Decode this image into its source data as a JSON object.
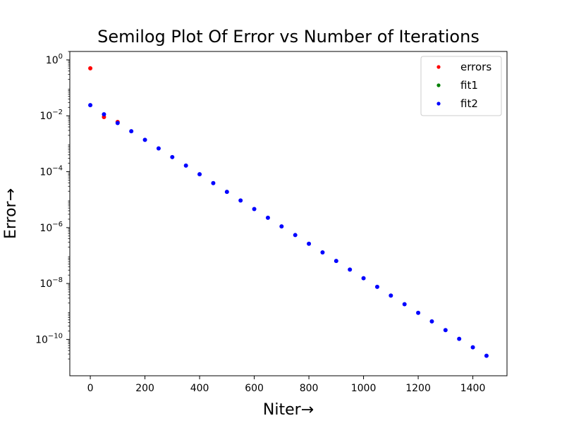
{
  "chart_data": {
    "type": "scatter",
    "title": "Semilog Plot Of Error vs Number of Iterations",
    "xlabel": "Niter→",
    "ylabel": "Error→",
    "xlim": [
      -75,
      1525
    ],
    "ylim": [
      5e-12,
      2
    ],
    "yscale": "log",
    "grid": false,
    "legend_position": "top-right",
    "x_ticks": [
      0,
      200,
      400,
      600,
      800,
      1000,
      1200,
      1400
    ],
    "x_tick_labels": [
      "0",
      "200",
      "400",
      "600",
      "800",
      "1000",
      "1200",
      "1400"
    ],
    "y_ticks": [
      1,
      0.01,
      0.0001,
      1e-06,
      1e-08,
      1e-10
    ],
    "y_tick_labels": [
      {
        "base": "10",
        "exp": "0"
      },
      {
        "base": "10",
        "exp": "−2"
      },
      {
        "base": "10",
        "exp": "−4"
      },
      {
        "base": "10",
        "exp": "−6"
      },
      {
        "base": "10",
        "exp": "−8"
      },
      {
        "base": "10",
        "exp": "−10"
      }
    ],
    "series": [
      {
        "name": "errors",
        "color": "#ff0000",
        "x": [
          0,
          50,
          100
        ],
        "y": [
          0.5,
          0.009,
          0.006
        ]
      },
      {
        "name": "fit1",
        "color": "#008000",
        "x": [],
        "y": []
      },
      {
        "name": "fit2",
        "color": "#0000ff",
        "x": [
          0,
          50,
          100,
          150,
          200,
          250,
          300,
          350,
          400,
          450,
          500,
          550,
          600,
          650,
          700,
          750,
          800,
          850,
          900,
          950,
          1000,
          1050,
          1100,
          1150,
          1200,
          1250,
          1300,
          1350,
          1400,
          1450
        ],
        "y": [
          0.024,
          0.0113,
          0.0055,
          0.0028,
          0.00138,
          0.00068,
          0.000333,
          0.000165,
          8.1e-05,
          3.9e-05,
          1.9e-05,
          9.3e-06,
          4.6e-06,
          2.25e-06,
          1.1e-06,
          5.4e-07,
          2.65e-07,
          1.3e-07,
          6.4e-08,
          3.15e-08,
          1.55e-08,
          7.6e-09,
          3.7e-09,
          1.82e-09,
          8.9e-10,
          4.4e-10,
          2.15e-10,
          1.05e-10,
          5.2e-11,
          2.6e-11
        ]
      }
    ]
  }
}
